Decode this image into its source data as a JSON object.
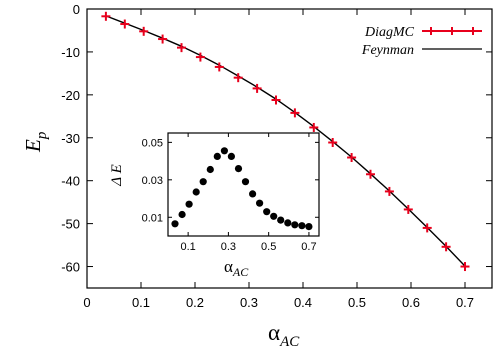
{
  "chart_data": [
    {
      "type": "line",
      "x_var": "α",
      "x_sub": "AC",
      "y_var": "E",
      "y_sub": "p",
      "xlim": [
        0,
        0.75
      ],
      "ylim": [
        -65,
        0
      ],
      "x_ticks": [
        0,
        0.1,
        0.2,
        0.3,
        0.4,
        0.5,
        0.6,
        0.7
      ],
      "x_tick_labels": [
        "0",
        "0.1",
        "0.2",
        "0.3",
        "0.4",
        "0.5",
        "0.6",
        "0.7"
      ],
      "y_ticks": [
        0,
        -10,
        -20,
        -30,
        -40,
        -50,
        -60
      ],
      "y_tick_labels": [
        "0",
        "-10",
        "-20",
        "-30",
        "-40",
        "-50",
        "-60"
      ],
      "legend_position": "top-right",
      "series": [
        {
          "name": "DiagMC",
          "style": "markers-errorbars",
          "color": "#e8001c",
          "x": [
            0.035,
            0.07,
            0.105,
            0.14,
            0.175,
            0.21,
            0.245,
            0.28,
            0.315,
            0.35,
            0.385,
            0.42,
            0.455,
            0.49,
            0.525,
            0.56,
            0.595,
            0.63,
            0.665,
            0.7
          ],
          "y": [
            -1.7,
            -3.5,
            -5.2,
            -7.0,
            -9.0,
            -11.2,
            -13.5,
            -16.0,
            -18.5,
            -21.2,
            -24.2,
            -27.6,
            -31.1,
            -34.6,
            -38.5,
            -42.5,
            -46.7,
            -51.0,
            -55.4,
            -60.0
          ]
        },
        {
          "name": "Feynman",
          "style": "line",
          "color": "#000000",
          "x": [
            0.035,
            0.07,
            0.105,
            0.14,
            0.175,
            0.21,
            0.245,
            0.28,
            0.315,
            0.35,
            0.385,
            0.42,
            0.455,
            0.49,
            0.525,
            0.56,
            0.595,
            0.63,
            0.665,
            0.7
          ],
          "y": [
            -1.6,
            -3.3,
            -5.0,
            -6.8,
            -8.7,
            -10.8,
            -13.1,
            -15.6,
            -18.2,
            -21.0,
            -24.1,
            -27.4,
            -30.9,
            -34.5,
            -38.4,
            -42.4,
            -46.6,
            -50.9,
            -55.3,
            -59.9
          ]
        }
      ]
    },
    {
      "type": "scatter",
      "x_var": "α",
      "x_sub": "AC",
      "y_var": "Δ E",
      "xlim": [
        0,
        0.75
      ],
      "ylim": [
        0,
        0.055
      ],
      "x_ticks": [
        0.1,
        0.3,
        0.5,
        0.7
      ],
      "x_tick_labels": [
        "0.1",
        "0.3",
        "0.5",
        "0.7"
      ],
      "y_ticks": [
        0.01,
        0.03,
        0.05
      ],
      "y_tick_labels": [
        "0.01",
        "0.03",
        "0.05"
      ],
      "series": [
        {
          "color": "#000000",
          "x": [
            0.035,
            0.07,
            0.105,
            0.14,
            0.175,
            0.21,
            0.245,
            0.28,
            0.315,
            0.35,
            0.385,
            0.42,
            0.455,
            0.49,
            0.525,
            0.56,
            0.595,
            0.63,
            0.665,
            0.7
          ],
          "y": [
            0.0065,
            0.0115,
            0.017,
            0.0235,
            0.029,
            0.0355,
            0.0425,
            0.0455,
            0.0425,
            0.036,
            0.029,
            0.0225,
            0.0175,
            0.013,
            0.0105,
            0.0085,
            0.007,
            0.006,
            0.0055,
            0.005
          ]
        }
      ]
    }
  ]
}
